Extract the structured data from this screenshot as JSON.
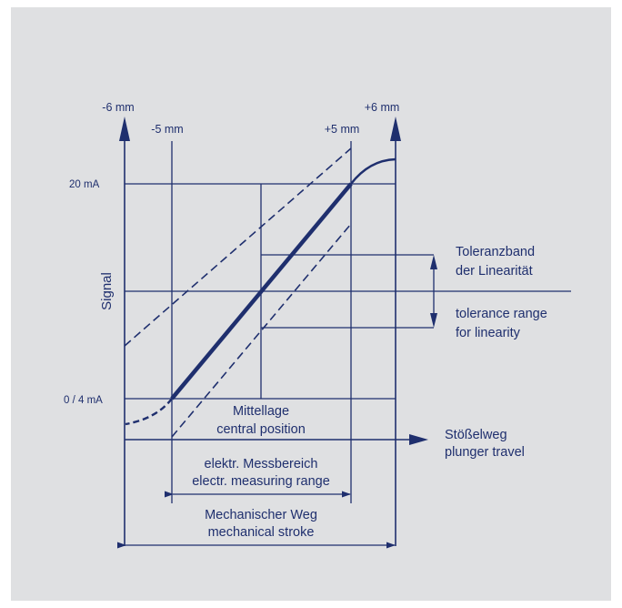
{
  "colors": {
    "ink": "#1f2f6e",
    "panel": "#dfe0e2"
  },
  "labels": {
    "neg6": "-6 mm",
    "pos6": "+6 mm",
    "neg5": "-5 mm",
    "pos5": "+5 mm",
    "ma20": "20 mA",
    "ma0": "0 / 4 mA",
    "signal": "Signal",
    "toleranz_de_1": "Toleranzband",
    "toleranz_de_2": "der Linearität",
    "toleranz_en_1": "tolerance range",
    "toleranz_en_2": "for linearity",
    "mittellage": "Mittellage",
    "central": "central position",
    "stoessel": "Stößelweg",
    "plunger": "plunger travel",
    "messbereich_de": "elektr. Messbereich",
    "messbereich_en": "electr. measuring range",
    "mech_de": "Mechanischer Weg",
    "mech_en": "mechanical stroke"
  }
}
